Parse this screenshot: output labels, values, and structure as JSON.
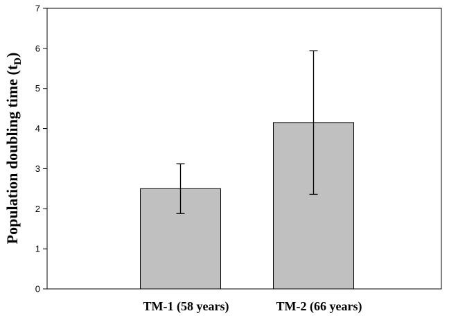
{
  "chart_data": {
    "type": "bar",
    "categories": [
      "TM-1 (58 years)",
      "TM-2 (66 years)"
    ],
    "values": [
      2.5,
      4.15
    ],
    "errors": [
      0.62,
      1.79
    ],
    "ylabel": "Population doubling time (tD)",
    "ylabel_main": "Population doubling time (t",
    "ylabel_sub": "D",
    "ylabel_close": ")",
    "xlabel": "",
    "title": "",
    "ylim": [
      0,
      7
    ],
    "yticks": [
      "0",
      "1",
      "2",
      "3",
      "4",
      "5",
      "6",
      "7"
    ],
    "grid": false,
    "bar_color": "#c0c0c0"
  }
}
